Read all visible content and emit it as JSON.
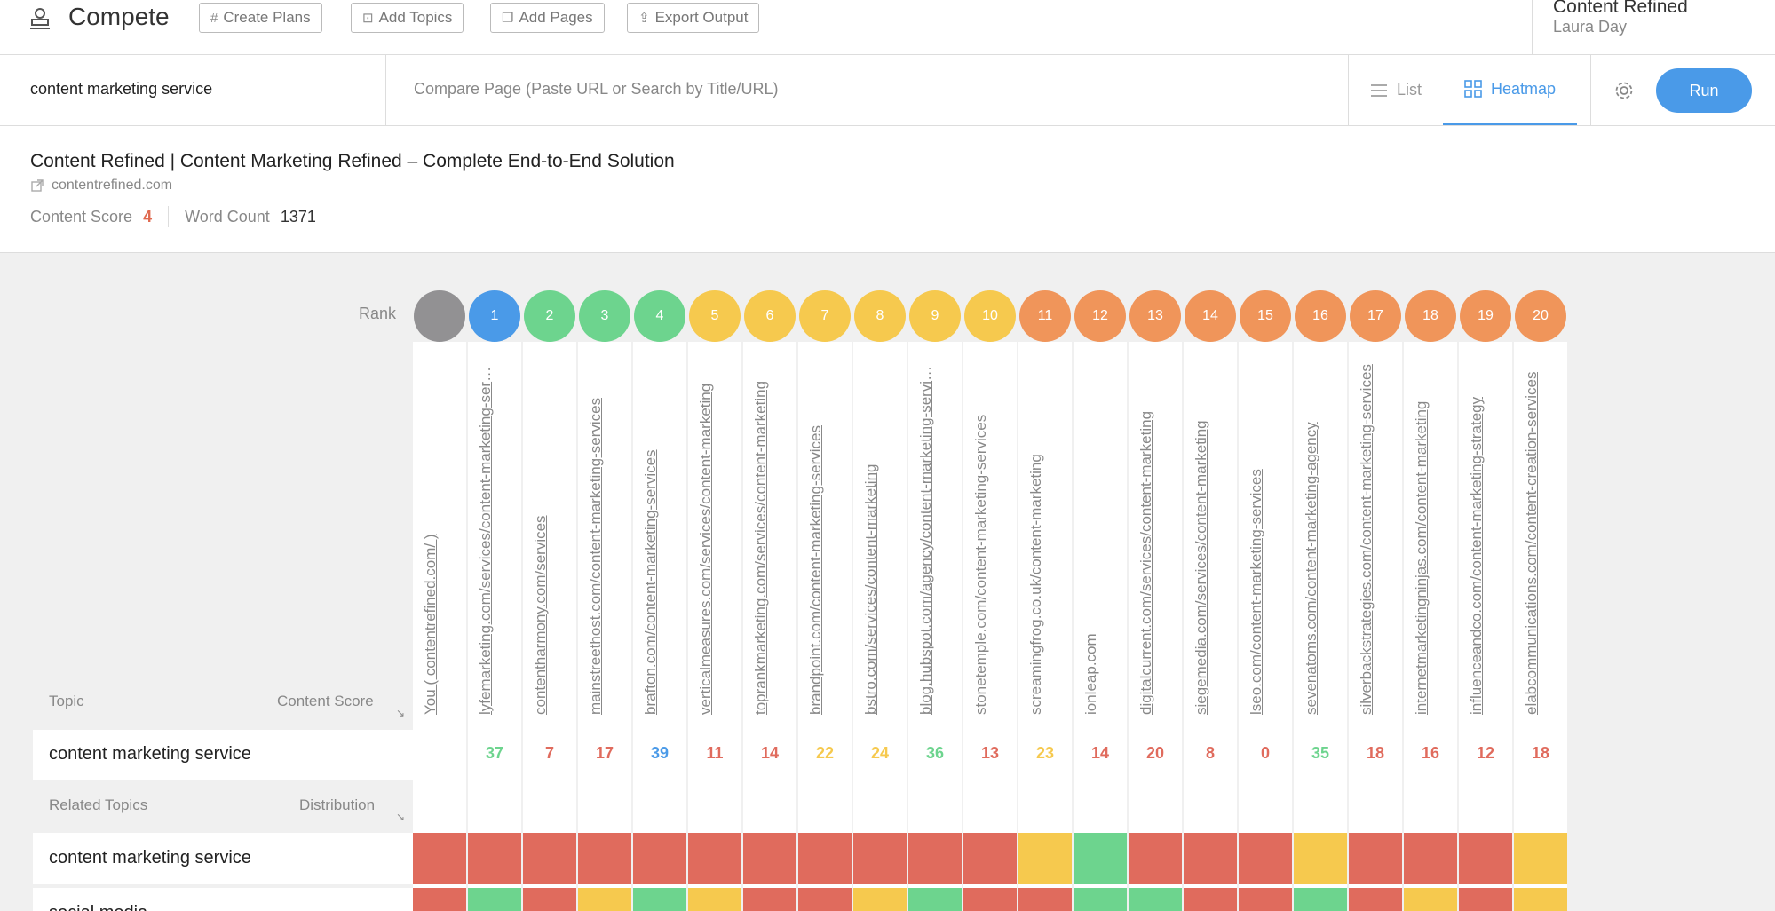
{
  "header": {
    "title": "Compete",
    "buttons": [
      {
        "label": "Create Plans",
        "icon": "hash-icon"
      },
      {
        "label": "Add Topics",
        "icon": "add-topic-icon"
      },
      {
        "label": "Add Pages",
        "icon": "copy-icon"
      },
      {
        "label": "Export Output",
        "icon": "upload-icon"
      }
    ],
    "org": "Content Refined",
    "user": "Laura Day"
  },
  "search": {
    "keyword": "content marketing service",
    "compare_placeholder": "Compare Page (Paste URL or Search by Title/URL)",
    "views": [
      {
        "label": "List",
        "icon": "list-icon",
        "active": false
      },
      {
        "label": "Heatmap",
        "icon": "grid-icon",
        "active": true
      }
    ],
    "run_label": "Run"
  },
  "page": {
    "title": "Content Refined | Content Marketing Refined – Complete End-to-End Solution",
    "url": "contentrefined.com",
    "score_label": "Content Score",
    "score": "4",
    "word_count_label": "Word Count",
    "word_count": "1371"
  },
  "heatmap": {
    "rank_label": "Rank",
    "topic_header": "Topic",
    "score_header": "Content Score",
    "related_header": "Related Topics",
    "distribution_header": "Distribution",
    "colors": {
      "gray": "#929193",
      "blue": "#4a9ae8",
      "green": "#6dd48e",
      "yellow": "#f6c94e",
      "orange": "#f0955a",
      "red": "#e06b5d"
    },
    "columns": [
      {
        "rank": "",
        "color": "gray",
        "url": "You ( contentrefined.com/ )",
        "score": "",
        "score_color": "red"
      },
      {
        "rank": "1",
        "color": "blue",
        "url": "lyfemarketing.com/services/content-marketing-services",
        "score": "37",
        "score_color": "green"
      },
      {
        "rank": "2",
        "color": "green",
        "url": "contentharmony.com/services",
        "score": "7",
        "score_color": "red"
      },
      {
        "rank": "3",
        "color": "green",
        "url": "mainstreethost.com/content-marketing-services",
        "score": "17",
        "score_color": "red"
      },
      {
        "rank": "4",
        "color": "green",
        "url": "brafton.com/content-marketing-services",
        "score": "39",
        "score_color": "blue"
      },
      {
        "rank": "5",
        "color": "yellow",
        "url": "verticalmeasures.com/services/content-marketing",
        "score": "11",
        "score_color": "red"
      },
      {
        "rank": "6",
        "color": "yellow",
        "url": "toprankmarketing.com/services/content-marketing",
        "score": "14",
        "score_color": "red"
      },
      {
        "rank": "7",
        "color": "yellow",
        "url": "brandpoint.com/content-marketing-services",
        "score": "22",
        "score_color": "yellow"
      },
      {
        "rank": "8",
        "color": "yellow",
        "url": "bstro.com/services/content-marketing",
        "score": "24",
        "score_color": "yellow"
      },
      {
        "rank": "9",
        "color": "yellow",
        "url": "blog.hubspot.com/agency/content-marketing-services",
        "score": "36",
        "score_color": "green"
      },
      {
        "rank": "10",
        "color": "yellow",
        "url": "stonetemple.com/content-marketing-services",
        "score": "13",
        "score_color": "red"
      },
      {
        "rank": "11",
        "color": "orange",
        "url": "screamingfrog.co.uk/content-marketing",
        "score": "23",
        "score_color": "yellow"
      },
      {
        "rank": "12",
        "color": "orange",
        "url": "ionleap.com",
        "score": "14",
        "score_color": "red"
      },
      {
        "rank": "13",
        "color": "orange",
        "url": "digitalcurrent.com/services/content-marketing",
        "score": "20",
        "score_color": "red"
      },
      {
        "rank": "14",
        "color": "orange",
        "url": "siegemedia.com/services/content-marketing",
        "score": "8",
        "score_color": "red"
      },
      {
        "rank": "15",
        "color": "orange",
        "url": "lseo.com/content-marketing-services",
        "score": "0",
        "score_color": "red"
      },
      {
        "rank": "16",
        "color": "orange",
        "url": "sevenatoms.com/content-marketing-agency",
        "score": "35",
        "score_color": "green"
      },
      {
        "rank": "17",
        "color": "orange",
        "url": "silverbackstrategies.com/content-marketing-services",
        "score": "18",
        "score_color": "red"
      },
      {
        "rank": "18",
        "color": "orange",
        "url": "internetmarketingninjas.com/content-marketing",
        "score": "16",
        "score_color": "red"
      },
      {
        "rank": "19",
        "color": "orange",
        "url": "influenceandco.com/content-marketing-strategy",
        "score": "12",
        "score_color": "red"
      },
      {
        "rank": "20",
        "color": "orange",
        "url": "elabcommunications.com/content-creation-services",
        "score": "18",
        "score_color": "red"
      }
    ],
    "topic": "content marketing service",
    "related": [
      {
        "label": "content marketing service",
        "cells": [
          "red",
          "red",
          "red",
          "red",
          "red",
          "red",
          "red",
          "red",
          "red",
          "red",
          "red",
          "yellow",
          "green",
          "red",
          "red",
          "red",
          "yellow",
          "red",
          "red",
          "red",
          "yellow"
        ]
      },
      {
        "label": "social media",
        "cells": [
          "red",
          "green",
          "red",
          "yellow",
          "green",
          "yellow",
          "red",
          "red",
          "yellow",
          "green",
          "red",
          "red",
          "green",
          "green",
          "red",
          "red",
          "green",
          "red",
          "yellow",
          "red",
          "yellow"
        ]
      }
    ]
  }
}
